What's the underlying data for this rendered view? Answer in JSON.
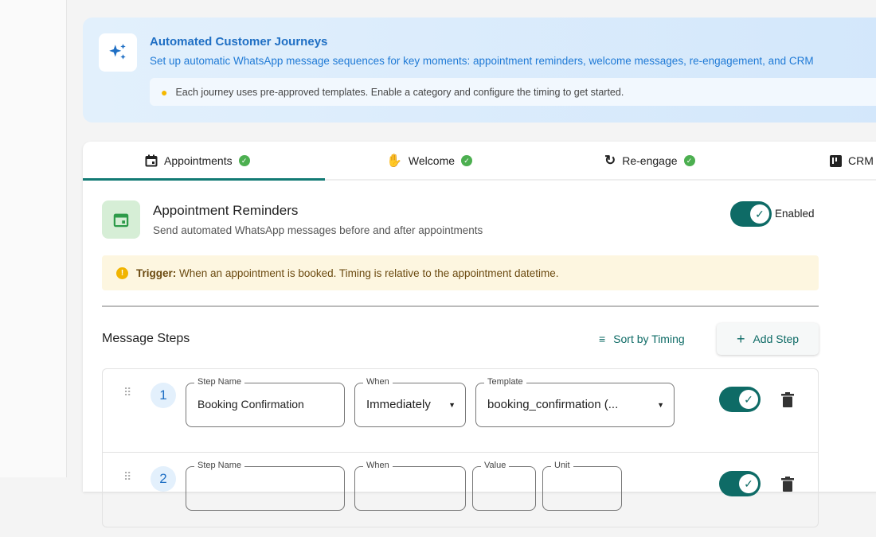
{
  "banner": {
    "title": "Automated Customer Journeys",
    "subtitle": "Set up automatic WhatsApp message sequences for key moments: appointment reminders, welcome messages, re-engagement, and CRM",
    "tip": "Each journey uses pre-approved templates. Enable a category and configure the timing to get started."
  },
  "tabs": [
    {
      "label": "Appointments",
      "icon": "calendar-icon",
      "active": true
    },
    {
      "label": "Welcome",
      "icon": "waving-hand-icon"
    },
    {
      "label": "Re-engage",
      "icon": "refresh-icon"
    },
    {
      "label": "CRM",
      "icon": "kanban-icon"
    }
  ],
  "section": {
    "title": "Appointment Reminders",
    "subtitle": "Send automated WhatsApp messages before and after appointments",
    "enabled_label": "Enabled",
    "trigger_label": "Trigger:",
    "trigger_text": "When an appointment is booked. Timing is relative to the appointment datetime."
  },
  "steps_header": {
    "title": "Message Steps",
    "sort": "Sort by Timing",
    "add": "Add Step"
  },
  "steps": [
    {
      "number": "1",
      "step_name_label": "Step Name",
      "step_name": "Booking Confirmation",
      "when_label": "When",
      "when": "Immediately",
      "template_label": "Template",
      "template": "booking_confirmation (..."
    },
    {
      "number": "2",
      "step_name_label": "Step Name",
      "when_label": "When",
      "value_label": "Value",
      "unit_label": "Unit"
    }
  ],
  "colors": {
    "accent": "#0e6b66",
    "banner_title": "#1f6fc4",
    "success": "#4caf50"
  }
}
